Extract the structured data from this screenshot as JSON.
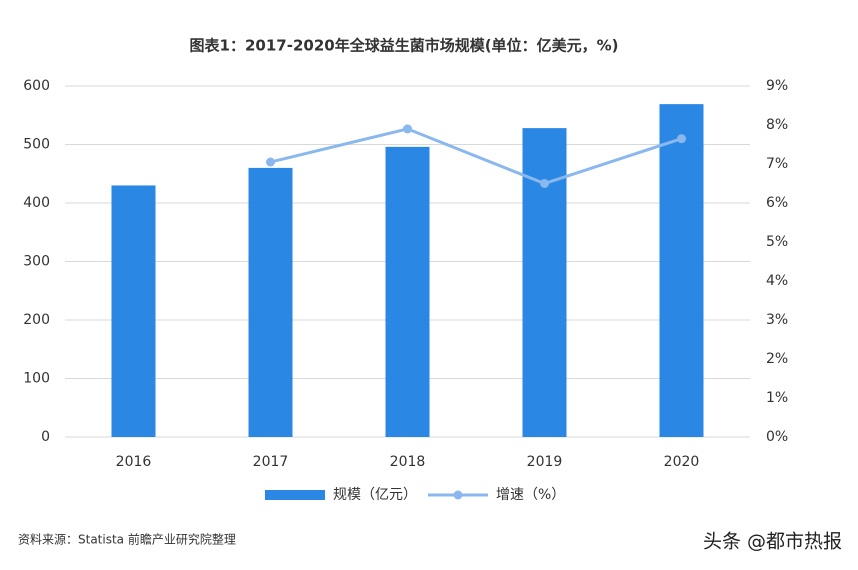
{
  "chart_data": {
    "type": "bar-line",
    "title": "图表1：2017-2020年全球益生菌市场规模(单位：亿美元，%)",
    "categories": [
      "2016",
      "2017",
      "2018",
      "2019",
      "2020"
    ],
    "series": [
      {
        "name": "规模（亿元）",
        "color": "#2a87e3",
        "type": "bar",
        "values": [
          430,
          460,
          496,
          528,
          569
        ]
      },
      {
        "name": "增速（%）",
        "color": "#8ab8ee",
        "type": "line",
        "axis": "y2",
        "values": [
          null,
          7.05,
          7.9,
          6.5,
          7.65
        ]
      }
    ],
    "ylim": [
      0,
      600
    ],
    "yticks": [
      0,
      100,
      200,
      300,
      400,
      500,
      600
    ],
    "y2lim": [
      0,
      9
    ],
    "y2ticks": [
      {
        "value": 0,
        "label": "0%"
      },
      {
        "value": 1,
        "label": "1%"
      },
      {
        "value": 2,
        "label": "2%"
      },
      {
        "value": 3,
        "label": "3%"
      },
      {
        "value": 4,
        "label": "4%"
      },
      {
        "value": 5,
        "label": "5%"
      },
      {
        "value": 6,
        "label": "6%"
      },
      {
        "value": 7,
        "label": "7%"
      },
      {
        "value": 8,
        "label": "8%"
      },
      {
        "value": 9,
        "label": "9%"
      }
    ],
    "grid": true,
    "legend": "bottom",
    "source": "资料来源：Statista 前瞻产业研究院整理",
    "watermark": "头条 @都市热报"
  }
}
